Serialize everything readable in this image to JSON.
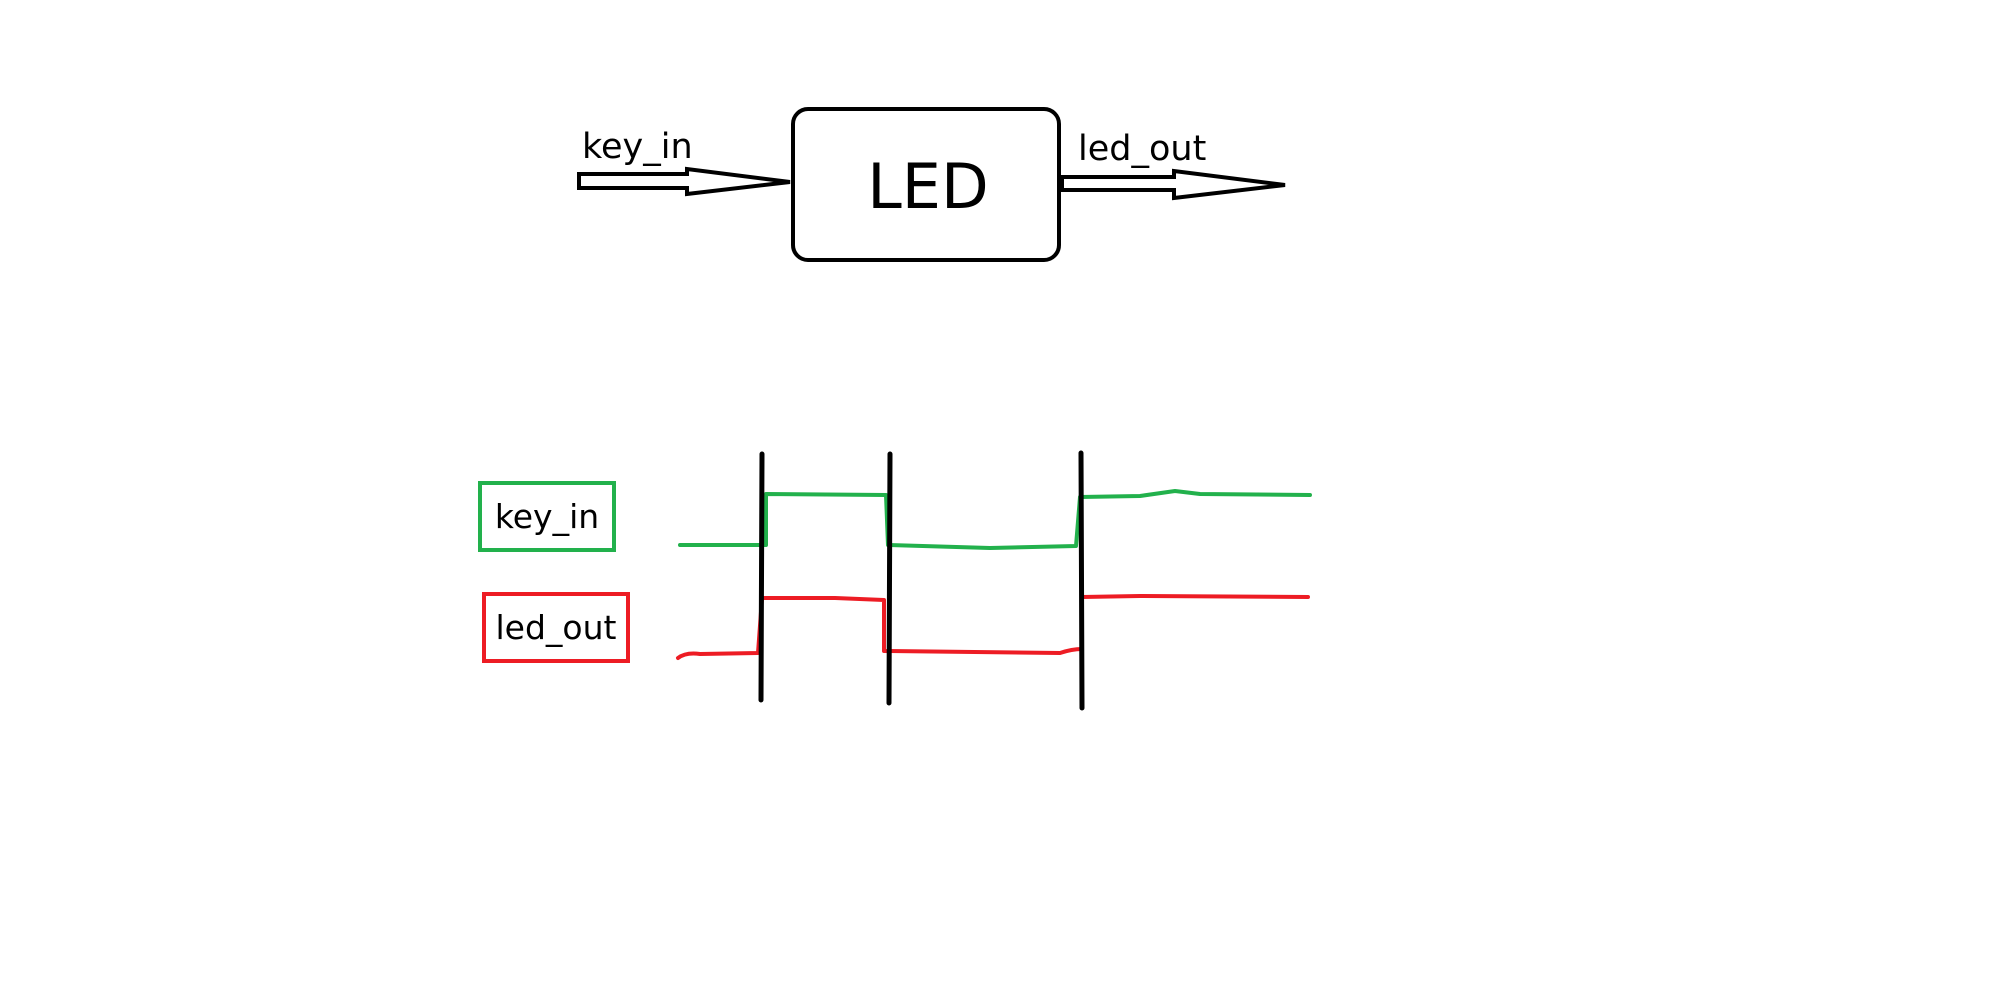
{
  "block_diagram": {
    "block_label": "LED",
    "input_label": "key_in",
    "output_label": "led_out"
  },
  "timing_diagram": {
    "signals": [
      {
        "label": "key_in",
        "color": "#22b14c",
        "levels": [
          "low",
          "high",
          "low",
          "high"
        ]
      },
      {
        "label": "led_out",
        "color": "#ed1c24",
        "levels": [
          "low",
          "high",
          "low",
          "high"
        ]
      }
    ],
    "edge_marker_color": "#000000",
    "edge_count": 3
  }
}
